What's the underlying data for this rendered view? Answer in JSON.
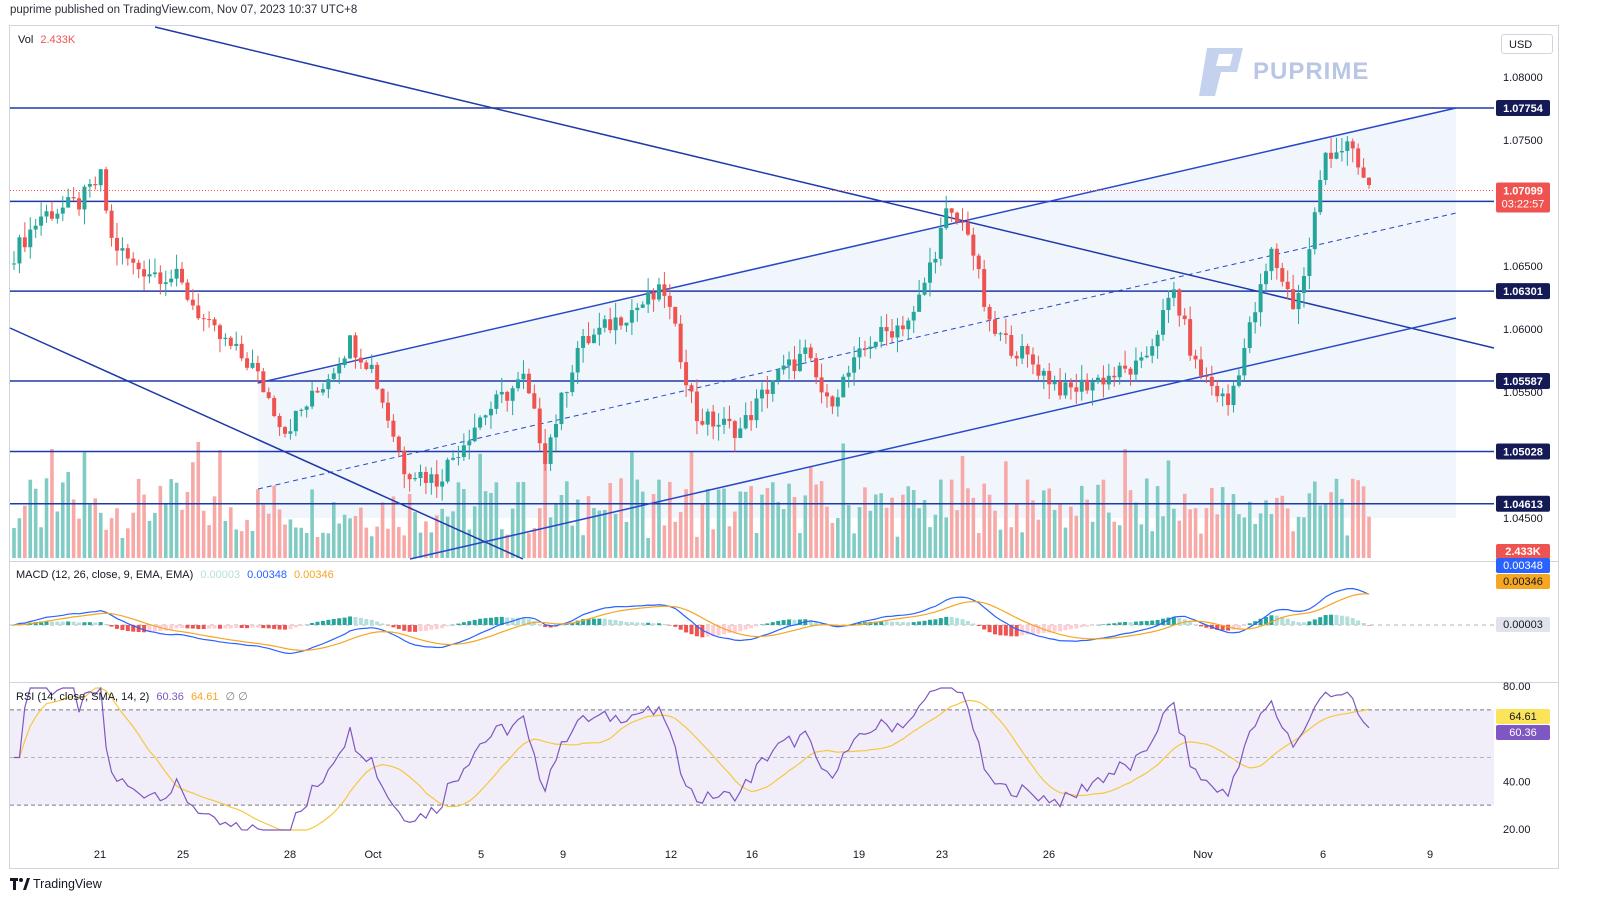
{
  "header": {
    "publisher": "puprime published on TradingView.com, Nov 07, 2023 10:37 UTC+8"
  },
  "currency": "USD",
  "logo": {
    "text": "PUPRIME"
  },
  "footer": {
    "brand": "TradingView"
  },
  "volume": {
    "label": "Vol",
    "value": "2.433K",
    "badge": "2.433K"
  },
  "macd": {
    "label": "MACD (12, 26, close, 9, EMA, EMA)",
    "hist": "0.00003",
    "macd": "0.00348",
    "signal": "0.00346"
  },
  "rsi": {
    "label": "RSI (14, close, SMA, 14, 2)",
    "rsi": "60.36",
    "sma": "64.61",
    "extra": "∅ ∅"
  },
  "price_axis": [
    "1.08000",
    "1.07500",
    "1.06500",
    "1.06000",
    "1.05500",
    "1.04500"
  ],
  "levels": [
    {
      "label": "1.07754",
      "value": 1.07754
    },
    {
      "label": "1.07013",
      "value": 1.07013
    },
    {
      "label": "1.06301",
      "value": 1.06301
    },
    {
      "label": "1.05587",
      "value": 1.05587
    },
    {
      "label": "1.05028",
      "value": 1.05028
    },
    {
      "label": "1.04613",
      "value": 1.04613
    }
  ],
  "last_price": {
    "label": "1.07099",
    "countdown": "03:22:57"
  },
  "rsi_axis": [
    "80.00",
    "40.00",
    "20.00"
  ],
  "x_ticks": [
    "21",
    "25",
    "28",
    "Oct",
    "5",
    "9",
    "12",
    "16",
    "19",
    "23",
    "26",
    "Nov",
    "6",
    "9"
  ],
  "colors": {
    "up": "#26a69a",
    "down": "#ef5350",
    "lines": "#1e3aa8",
    "macd": "#2962ff",
    "signal": "#f5a623",
    "rsi": "#7e57c2"
  },
  "chart_data": {
    "type": "candlestick",
    "symbol_timeframe": "4h",
    "y_range": [
      1.0432,
      1.0808
    ],
    "channel": {
      "lower_start": [
        1.0556,
        1.0432
      ],
      "upper_start": [
        1.0556,
        1.0776
      ]
    },
    "ohlc_anchors": [
      {
        "i": 0,
        "c": 1.066
      },
      {
        "i": 5,
        "c": 1.069
      },
      {
        "i": 12,
        "c": 1.07
      },
      {
        "i": 16,
        "c": 1.072
      },
      {
        "i": 18,
        "c": 1.067
      },
      {
        "i": 22,
        "c": 1.065
      },
      {
        "i": 30,
        "c": 1.064
      },
      {
        "i": 36,
        "c": 1.06
      },
      {
        "i": 44,
        "c": 1.057
      },
      {
        "i": 50,
        "c": 1.052
      },
      {
        "i": 56,
        "c": 1.055
      },
      {
        "i": 62,
        "c": 1.059
      },
      {
        "i": 66,
        "c": 1.057
      },
      {
        "i": 72,
        "c": 1.049
      },
      {
        "i": 78,
        "c": 1.048
      },
      {
        "i": 86,
        "c": 1.053
      },
      {
        "i": 94,
        "c": 1.056
      },
      {
        "i": 98,
        "c": 1.05
      },
      {
        "i": 104,
        "c": 1.0585
      },
      {
        "i": 112,
        "c": 1.061
      },
      {
        "i": 120,
        "c": 1.063
      },
      {
        "i": 126,
        "c": 1.053
      },
      {
        "i": 134,
        "c": 1.052
      },
      {
        "i": 140,
        "c": 1.056
      },
      {
        "i": 146,
        "c": 1.058
      },
      {
        "i": 150,
        "c": 1.054
      },
      {
        "i": 158,
        "c": 1.059
      },
      {
        "i": 166,
        "c": 1.061
      },
      {
        "i": 172,
        "c": 1.069
      },
      {
        "i": 176,
        "c": 1.068
      },
      {
        "i": 180,
        "c": 1.06
      },
      {
        "i": 186,
        "c": 1.058
      },
      {
        "i": 194,
        "c": 1.055
      },
      {
        "i": 200,
        "c": 1.056
      },
      {
        "i": 208,
        "c": 1.057
      },
      {
        "i": 214,
        "c": 1.063
      },
      {
        "i": 218,
        "c": 1.057
      },
      {
        "i": 224,
        "c": 1.054
      },
      {
        "i": 228,
        "c": 1.06
      },
      {
        "i": 232,
        "c": 1.066
      },
      {
        "i": 236,
        "c": 1.062
      },
      {
        "i": 238,
        "c": 1.064
      },
      {
        "i": 242,
        "c": 1.074
      },
      {
        "i": 246,
        "c": 1.0745
      },
      {
        "i": 250,
        "c": 1.071
      }
    ]
  }
}
